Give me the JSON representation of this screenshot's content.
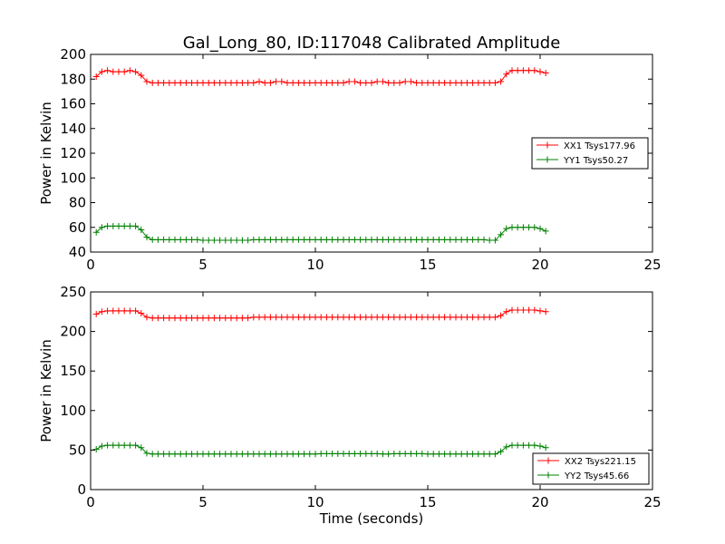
{
  "chart_data": [
    {
      "type": "line",
      "title": "Gal_Long_80, ID:117048 Calibrated Amplitude",
      "xlabel": "",
      "ylabel": "Power in Kelvin",
      "xlim": [
        0,
        25
      ],
      "ylim": [
        40,
        200
      ],
      "xticks": [
        "0",
        "5",
        "10",
        "15",
        "20",
        "25"
      ],
      "yticks": [
        "40",
        "60",
        "80",
        "100",
        "120",
        "140",
        "160",
        "180",
        "200"
      ],
      "grid": false,
      "legend": "center-right",
      "series": [
        {
          "name": "XX1 Tsys177.96",
          "color": "#ff0000",
          "x": [
            0.25,
            0.5,
            0.75,
            1.0,
            1.25,
            1.5,
            1.75,
            2.0,
            2.25,
            2.5,
            2.75,
            3.0,
            3.25,
            3.5,
            3.75,
            4.0,
            4.25,
            4.5,
            4.75,
            5.0,
            5.25,
            5.5,
            5.75,
            6.0,
            6.25,
            6.5,
            6.75,
            7.0,
            7.25,
            7.5,
            7.75,
            8.0,
            8.25,
            8.5,
            8.75,
            9.0,
            9.25,
            9.5,
            9.75,
            10.0,
            10.25,
            10.5,
            10.75,
            11.0,
            11.25,
            11.5,
            11.75,
            12.0,
            12.25,
            12.5,
            12.75,
            13.0,
            13.25,
            13.5,
            13.75,
            14.0,
            14.25,
            14.5,
            14.75,
            15.0,
            15.25,
            15.5,
            15.75,
            16.0,
            16.25,
            16.5,
            16.75,
            17.0,
            17.25,
            17.5,
            17.75,
            18.0,
            18.25,
            18.5,
            18.75,
            19.0,
            19.25,
            19.5,
            19.75,
            20.0,
            20.25
          ],
          "y": [
            182,
            186,
            187,
            186,
            186,
            186,
            187,
            186,
            183,
            178,
            177,
            177,
            177,
            177,
            177,
            177,
            177,
            177,
            177,
            177,
            177,
            177,
            177,
            177,
            177,
            177,
            177,
            177,
            177,
            178,
            177,
            177,
            178,
            178,
            177,
            177,
            177,
            177,
            177,
            177,
            177,
            177,
            177,
            177,
            177,
            178,
            178,
            177,
            177,
            177,
            178,
            178,
            177,
            177,
            177,
            178,
            178,
            177,
            177,
            177,
            177,
            177,
            177,
            177,
            177,
            177,
            177,
            177,
            177,
            177,
            177,
            177,
            178,
            184,
            187,
            187,
            187,
            187,
            187,
            186,
            185
          ]
        },
        {
          "name": "YY1 Tsys50.27",
          "color": "#008000",
          "x": [
            0.25,
            0.5,
            0.75,
            1.0,
            1.25,
            1.5,
            1.75,
            2.0,
            2.25,
            2.5,
            2.75,
            3.0,
            3.25,
            3.5,
            3.75,
            4.0,
            4.25,
            4.5,
            4.75,
            5.0,
            5.25,
            5.5,
            5.75,
            6.0,
            6.25,
            6.5,
            6.75,
            7.0,
            7.25,
            7.5,
            7.75,
            8.0,
            8.25,
            8.5,
            8.75,
            9.0,
            9.25,
            9.5,
            9.75,
            10.0,
            10.25,
            10.5,
            10.75,
            11.0,
            11.25,
            11.5,
            11.75,
            12.0,
            12.25,
            12.5,
            12.75,
            13.0,
            13.25,
            13.5,
            13.75,
            14.0,
            14.25,
            14.5,
            14.75,
            15.0,
            15.25,
            15.5,
            15.75,
            16.0,
            16.25,
            16.5,
            16.75,
            17.0,
            17.25,
            17.5,
            17.75,
            18.0,
            18.25,
            18.5,
            18.75,
            19.0,
            19.25,
            19.5,
            19.75,
            20.0,
            20.25
          ],
          "y": [
            56,
            60,
            61,
            61,
            61,
            61,
            61,
            61,
            58,
            52,
            50,
            50,
            50,
            50,
            50,
            50,
            50,
            50,
            50,
            49.5,
            49.5,
            49.5,
            49.5,
            49.5,
            49.5,
            49.5,
            49.5,
            49.5,
            50,
            50,
            50,
            50,
            50,
            50,
            50,
            50,
            50,
            50,
            50,
            50,
            50,
            50,
            50,
            50,
            50,
            50,
            50,
            50,
            50,
            50,
            50,
            50,
            50,
            50,
            50,
            50,
            50,
            50,
            50,
            50,
            50,
            50,
            50,
            50,
            50,
            50,
            50,
            50,
            50,
            50,
            49.5,
            49.5,
            54,
            59,
            60,
            60,
            60,
            60,
            60,
            59,
            57
          ]
        }
      ]
    },
    {
      "type": "line",
      "title": "",
      "xlabel": "Time (seconds)",
      "ylabel": "Power in Kelvin",
      "xlim": [
        0,
        25
      ],
      "ylim": [
        0,
        250
      ],
      "xticks": [
        "0",
        "5",
        "10",
        "15",
        "20",
        "25"
      ],
      "yticks": [
        "0",
        "50",
        "100",
        "150",
        "200",
        "250"
      ],
      "grid": false,
      "legend": "bottom-right",
      "series": [
        {
          "name": "XX2 Tsys221.15",
          "color": "#ff0000",
          "x": [
            0.25,
            0.5,
            0.75,
            1.0,
            1.25,
            1.5,
            1.75,
            2.0,
            2.25,
            2.5,
            2.75,
            3.0,
            3.25,
            3.5,
            3.75,
            4.0,
            4.25,
            4.5,
            4.75,
            5.0,
            5.25,
            5.5,
            5.75,
            6.0,
            6.25,
            6.5,
            6.75,
            7.0,
            7.25,
            7.5,
            7.75,
            8.0,
            8.25,
            8.5,
            8.75,
            9.0,
            9.25,
            9.5,
            9.75,
            10.0,
            10.25,
            10.5,
            10.75,
            11.0,
            11.25,
            11.5,
            11.75,
            12.0,
            12.25,
            12.5,
            12.75,
            13.0,
            13.25,
            13.5,
            13.75,
            14.0,
            14.25,
            14.5,
            14.75,
            15.0,
            15.25,
            15.5,
            15.75,
            16.0,
            16.25,
            16.5,
            16.75,
            17.0,
            17.25,
            17.5,
            17.75,
            18.0,
            18.25,
            18.5,
            18.75,
            19.0,
            19.25,
            19.5,
            19.75,
            20.0,
            20.25
          ],
          "y": [
            222,
            225,
            226,
            226,
            226,
            226,
            226,
            226,
            223,
            218,
            217,
            217,
            217,
            217,
            217,
            217,
            217,
            217,
            217,
            217,
            217,
            217,
            217,
            217,
            217,
            217,
            217,
            217,
            218,
            218,
            218,
            218,
            218,
            218,
            218,
            218,
            218,
            218,
            218,
            218,
            218,
            218,
            218,
            218,
            218,
            218,
            218,
            218,
            218,
            218,
            218,
            218,
            218,
            218,
            218,
            218,
            218,
            218,
            218,
            218,
            218,
            218,
            218,
            218,
            218,
            218,
            218,
            218,
            218,
            218,
            218,
            218,
            220,
            225,
            227,
            227,
            227,
            227,
            227,
            226,
            225
          ]
        },
        {
          "name": "YY2 Tsys45.66",
          "color": "#008000",
          "x": [
            0.25,
            0.5,
            0.75,
            1.0,
            1.25,
            1.5,
            1.75,
            2.0,
            2.25,
            2.5,
            2.75,
            3.0,
            3.25,
            3.5,
            3.75,
            4.0,
            4.25,
            4.5,
            4.75,
            5.0,
            5.25,
            5.5,
            5.75,
            6.0,
            6.25,
            6.5,
            6.75,
            7.0,
            7.25,
            7.5,
            7.75,
            8.0,
            8.25,
            8.5,
            8.75,
            9.0,
            9.25,
            9.5,
            9.75,
            10.0,
            10.25,
            10.5,
            10.75,
            11.0,
            11.25,
            11.5,
            11.75,
            12.0,
            12.25,
            12.5,
            12.75,
            13.0,
            13.25,
            13.5,
            13.75,
            14.0,
            14.25,
            14.5,
            14.75,
            15.0,
            15.25,
            15.5,
            15.75,
            16.0,
            16.25,
            16.5,
            16.75,
            17.0,
            17.25,
            17.5,
            17.75,
            18.0,
            18.25,
            18.5,
            18.75,
            19.0,
            19.25,
            19.5,
            19.75,
            20.0,
            20.25
          ],
          "y": [
            51,
            55,
            56,
            56,
            56,
            56,
            56,
            56,
            53,
            46,
            45,
            45,
            45,
            45,
            45,
            45,
            45,
            45,
            45,
            45,
            45,
            45,
            45,
            45,
            45,
            45,
            45,
            45,
            45,
            45,
            45,
            45,
            45,
            45,
            45,
            45,
            45,
            45,
            45,
            45,
            45.5,
            45.5,
            45.5,
            45.5,
            45.5,
            45.5,
            45.5,
            45.5,
            45.5,
            45.5,
            45.5,
            45,
            45,
            45.5,
            45.5,
            45.5,
            45.5,
            45.5,
            45.5,
            45,
            45,
            45,
            45,
            45,
            45,
            45,
            45,
            45,
            45,
            45,
            45,
            45,
            48,
            54,
            56,
            56,
            56,
            56,
            56,
            55,
            53
          ]
        }
      ]
    }
  ]
}
